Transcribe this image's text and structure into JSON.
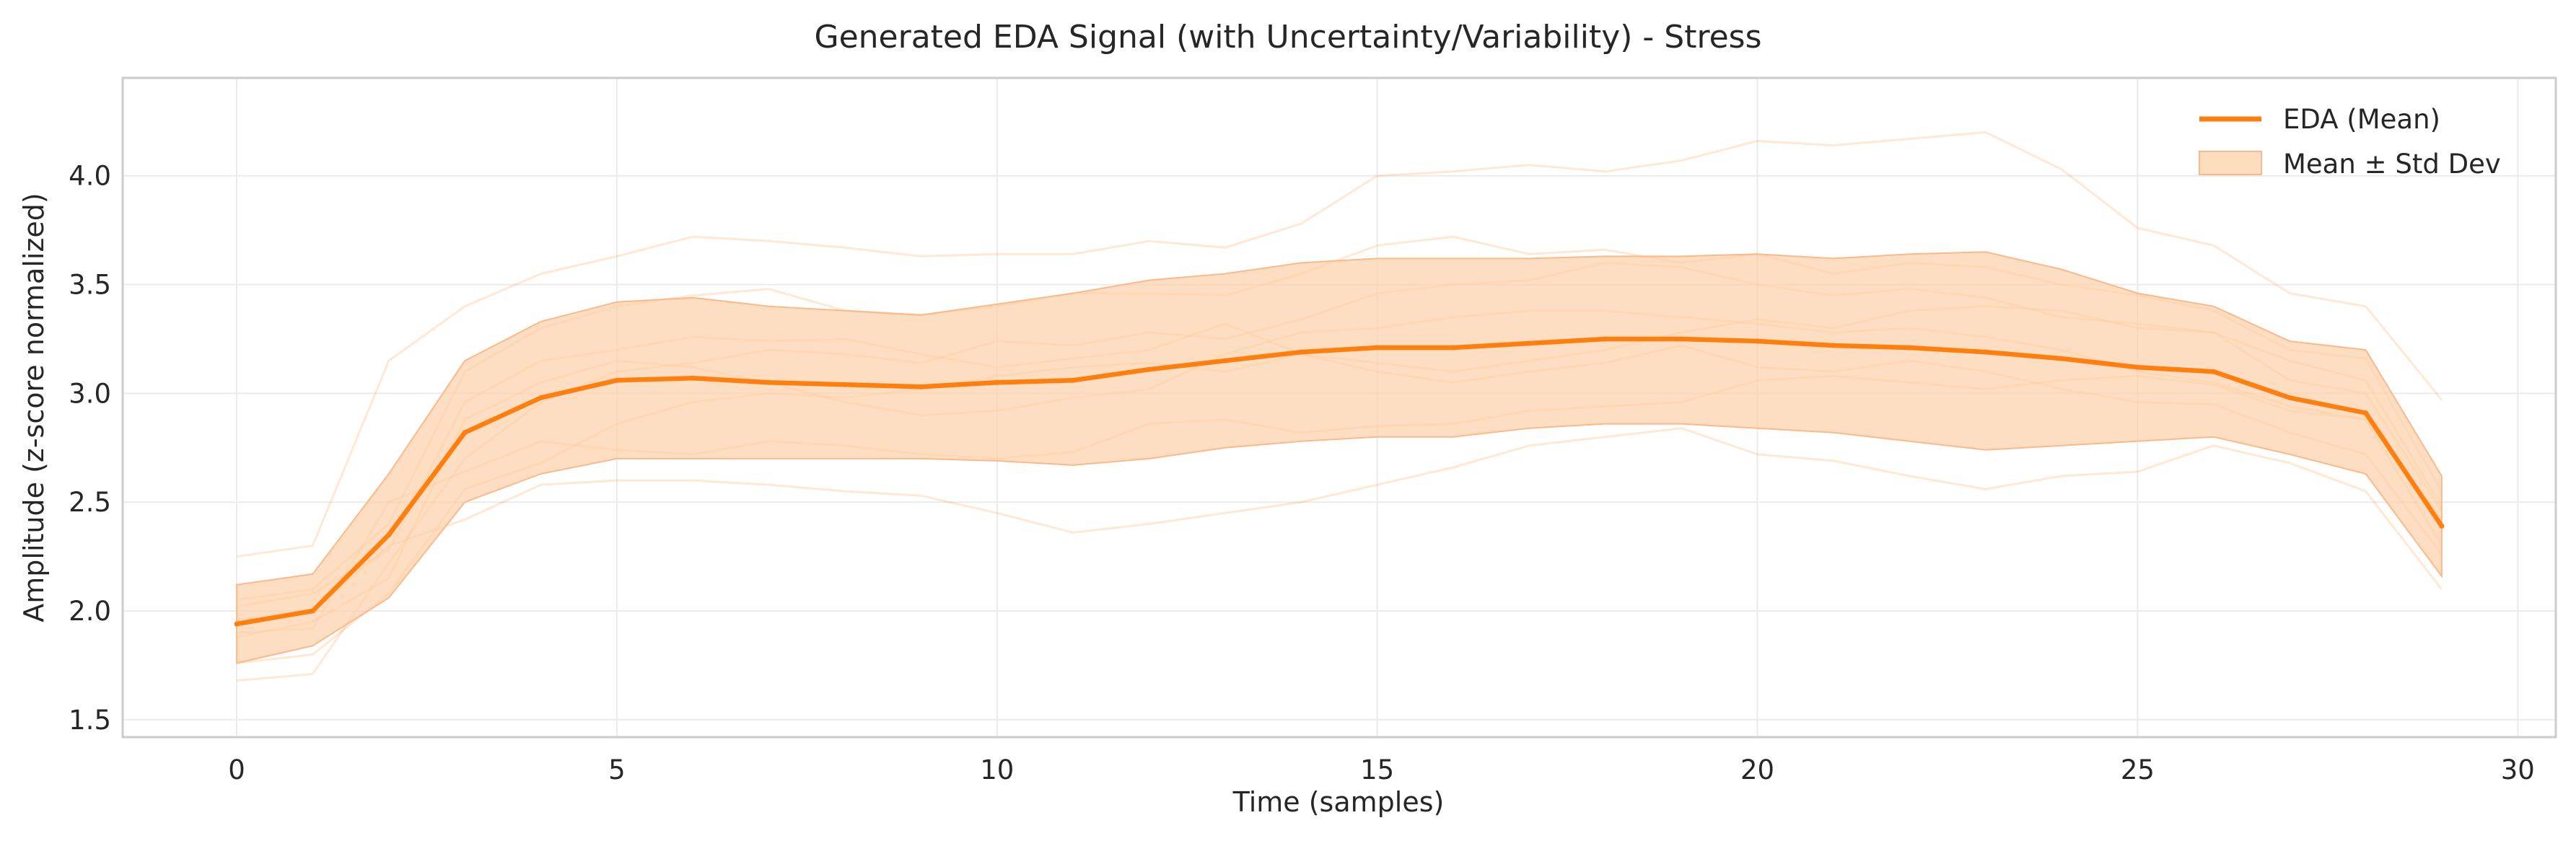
{
  "chart_data": {
    "type": "line",
    "title": "Generated EDA Signal (with Uncertainty/Variability) - Stress",
    "xlabel": "Time (samples)",
    "ylabel": "Amplitude (z-score normalized)",
    "xlim": [
      -1.5,
      30.5
    ],
    "ylim": [
      1.42,
      4.45
    ],
    "xticks": [
      0,
      5,
      10,
      15,
      20,
      25,
      30
    ],
    "yticks": [
      1.5,
      2.0,
      2.5,
      3.0,
      3.5,
      4.0
    ],
    "xtick_labels": [
      "0",
      "5",
      "10",
      "15",
      "20",
      "25",
      "30"
    ],
    "ytick_labels": [
      "1.5",
      "2.0",
      "2.5",
      "3.0",
      "3.5",
      "4.0"
    ],
    "grid": true,
    "legend_position": "top-right",
    "colors": {
      "line": "#ff7f0e",
      "band": "#fdd0a8"
    },
    "x": [
      0,
      1,
      2,
      3,
      4,
      5,
      6,
      7,
      8,
      9,
      10,
      11,
      12,
      13,
      14,
      15,
      16,
      17,
      18,
      19,
      20,
      21,
      22,
      23,
      24,
      25,
      26,
      27,
      28,
      29
    ],
    "mean": {
      "name": "EDA (Mean)",
      "values": [
        1.94,
        2.0,
        2.35,
        2.82,
        2.98,
        3.06,
        3.07,
        3.05,
        3.04,
        3.03,
        3.05,
        3.06,
        3.11,
        3.15,
        3.19,
        3.21,
        3.21,
        3.23,
        3.25,
        3.25,
        3.24,
        3.22,
        3.21,
        3.19,
        3.16,
        3.12,
        3.1,
        2.98,
        2.91,
        2.39
      ]
    },
    "band": {
      "name": "Mean ± Std Dev",
      "lower": [
        1.76,
        1.84,
        2.06,
        2.5,
        2.63,
        2.7,
        2.7,
        2.7,
        2.7,
        2.7,
        2.69,
        2.67,
        2.7,
        2.75,
        2.78,
        2.8,
        2.8,
        2.84,
        2.86,
        2.86,
        2.84,
        2.82,
        2.78,
        2.74,
        2.76,
        2.78,
        2.8,
        2.72,
        2.63,
        2.16
      ],
      "upper": [
        2.12,
        2.17,
        2.63,
        3.15,
        3.33,
        3.42,
        3.44,
        3.4,
        3.38,
        3.36,
        3.41,
        3.46,
        3.52,
        3.55,
        3.6,
        3.62,
        3.62,
        3.62,
        3.63,
        3.63,
        3.64,
        3.62,
        3.64,
        3.65,
        3.57,
        3.46,
        3.4,
        3.24,
        3.2,
        2.62
      ]
    },
    "samples": [
      [
        2.25,
        2.3,
        3.15,
        3.4,
        3.55,
        3.63,
        3.72,
        3.7,
        3.67,
        3.63,
        3.64,
        3.64,
        3.7,
        3.67,
        3.78,
        4.0,
        4.02,
        4.05,
        4.02,
        4.07,
        4.16,
        4.14,
        4.17,
        4.2,
        4.03,
        3.76,
        3.68,
        3.46,
        3.4,
        2.97
      ],
      [
        1.68,
        1.71,
        2.22,
        2.7,
        2.96,
        3.1,
        3.14,
        3.2,
        3.18,
        3.14,
        3.24,
        3.22,
        3.28,
        3.25,
        3.34,
        3.46,
        3.5,
        3.52,
        3.6,
        3.58,
        3.5,
        3.45,
        3.48,
        3.44,
        3.35,
        3.32,
        3.28,
        3.15,
        3.06,
        2.48
      ],
      [
        1.76,
        1.8,
        2.08,
        2.56,
        2.68,
        2.86,
        2.96,
        3.0,
        2.98,
        3.02,
        3.08,
        3.12,
        3.14,
        3.1,
        3.18,
        3.1,
        3.05,
        3.1,
        3.14,
        3.22,
        3.12,
        3.1,
        3.15,
        3.1,
        3.02,
        2.96,
        2.95,
        2.82,
        2.72,
        2.26
      ],
      [
        1.96,
        2.0,
        2.3,
        2.42,
        2.58,
        2.6,
        2.6,
        2.58,
        2.55,
        2.53,
        2.45,
        2.36,
        2.4,
        2.45,
        2.5,
        2.58,
        2.66,
        2.76,
        2.8,
        2.84,
        2.72,
        2.69,
        2.62,
        2.56,
        2.62,
        2.64,
        2.76,
        2.68,
        2.55,
        2.1
      ],
      [
        2.05,
        2.1,
        2.4,
        3.1,
        3.3,
        3.4,
        3.45,
        3.48,
        3.38,
        3.36,
        3.4,
        3.46,
        3.46,
        3.45,
        3.55,
        3.68,
        3.72,
        3.64,
        3.66,
        3.6,
        3.64,
        3.55,
        3.6,
        3.58,
        3.5,
        3.45,
        3.38,
        3.2,
        3.16,
        2.55
      ],
      [
        1.88,
        1.95,
        2.15,
        2.88,
        3.05,
        3.15,
        3.12,
        3.05,
        2.96,
        2.9,
        2.92,
        2.98,
        3.02,
        3.18,
        3.28,
        3.3,
        3.35,
        3.38,
        3.38,
        3.35,
        3.32,
        3.28,
        3.3,
        3.26,
        3.2,
        3.1,
        3.05,
        2.94,
        2.88,
        2.3
      ],
      [
        1.9,
        1.92,
        2.5,
        2.64,
        2.78,
        2.74,
        2.72,
        2.78,
        2.76,
        2.72,
        2.7,
        2.73,
        2.86,
        2.88,
        2.82,
        2.85,
        2.86,
        2.92,
        2.94,
        2.96,
        3.06,
        3.08,
        3.05,
        3.02,
        3.06,
        3.08,
        3.04,
        2.92,
        2.88,
        2.42
      ],
      [
        2.02,
        2.08,
        2.28,
        2.96,
        3.15,
        3.2,
        3.26,
        3.24,
        3.25,
        3.18,
        3.12,
        3.16,
        3.2,
        3.32,
        3.18,
        3.14,
        3.1,
        3.15,
        3.2,
        3.28,
        3.34,
        3.3,
        3.38,
        3.4,
        3.38,
        3.3,
        3.28,
        3.06,
        3.0,
        2.46
      ]
    ]
  }
}
